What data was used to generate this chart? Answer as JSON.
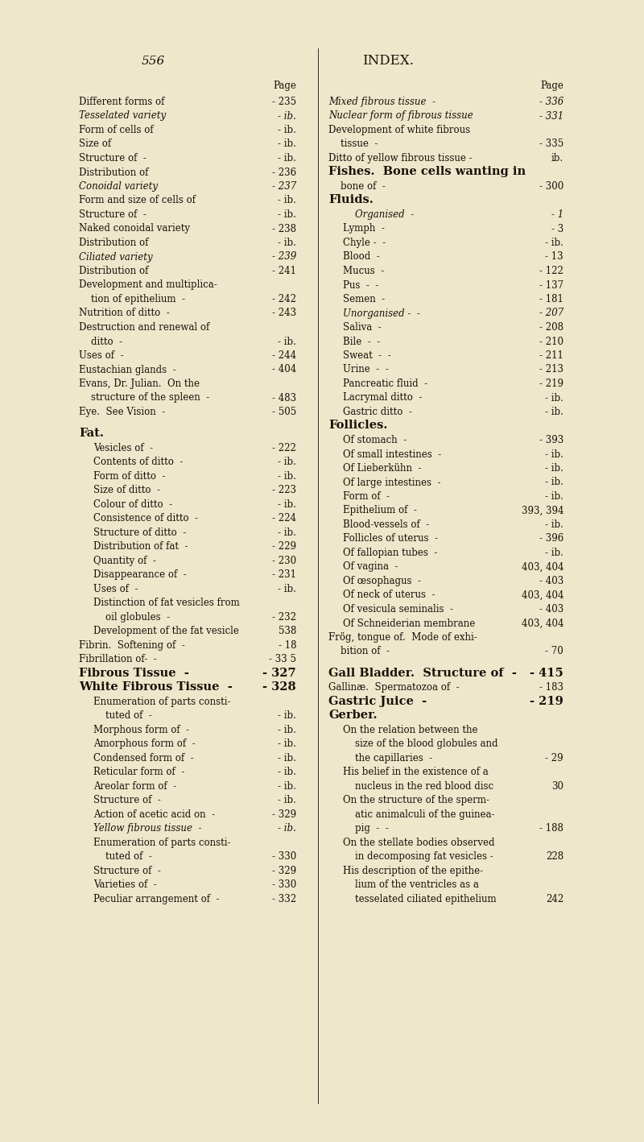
{
  "bg_color": "#ede8cc",
  "text_color": "#1a1008",
  "page_number": "556",
  "header": "INDEX.",
  "left_column": [
    {
      "text": "",
      "page": "Page",
      "style": "header"
    },
    {
      "text": "Different forms of",
      "dashes": "   -",
      "page": "- 235",
      "style": "normal"
    },
    {
      "text": "Tesselated variety",
      "dashes": "   -",
      "page": "- ib.",
      "style": "italic"
    },
    {
      "text": "Form of cells of",
      "dashes": "   -",
      "page": "- ib.",
      "style": "normal"
    },
    {
      "text": "Size of",
      "dashes": "   -   -",
      "page": "- ib.",
      "style": "normal"
    },
    {
      "text": "Structure of  -",
      "dashes": "   -",
      "page": "- ib.",
      "style": "normal"
    },
    {
      "text": "Distribution of",
      "dashes": "   -",
      "page": "- 236",
      "style": "normal"
    },
    {
      "text": "Conoidal variety",
      "dashes": "   -",
      "page": "- 237",
      "style": "italic"
    },
    {
      "text": "Form and size of cells of",
      "dashes": "   -",
      "page": "- ib.",
      "style": "normal"
    },
    {
      "text": "Structure of  -",
      "dashes": "   -",
      "page": "- ib.",
      "style": "normal"
    },
    {
      "text": "Naked conoidal variety",
      "dashes": "   -",
      "page": "- 238",
      "style": "normal"
    },
    {
      "text": "Distribution of",
      "dashes": "   -",
      "page": "- ib.",
      "style": "normal"
    },
    {
      "text": "Ciliated variety",
      "dashes": "   -",
      "page": "- 239",
      "style": "italic"
    },
    {
      "text": "Distribution of",
      "dashes": "   -",
      "page": "- 241",
      "style": "normal"
    },
    {
      "text": "Development and multiplica-",
      "dashes": "",
      "page": "",
      "style": "normal"
    },
    {
      "text": "    tion of epithelium  -",
      "dashes": "",
      "page": "- 242",
      "style": "normal"
    },
    {
      "text": "Nutrition of ditto  -",
      "dashes": "",
      "page": "- 243",
      "style": "normal"
    },
    {
      "text": "Destruction and renewal of",
      "dashes": "",
      "page": "",
      "style": "normal"
    },
    {
      "text": "    ditto  -",
      "dashes": "   -",
      "page": "- ib.",
      "style": "normal"
    },
    {
      "text": "Uses of  -",
      "dashes": "   -",
      "page": "- 244",
      "style": "normal"
    },
    {
      "text": "Eustachian glands  -",
      "dashes": "",
      "page": "- 404",
      "style": "normal"
    },
    {
      "text": "Evans, Dr. Julian.  On the",
      "dashes": "",
      "page": "",
      "style": "normal"
    },
    {
      "text": "    structure of the spleen  -",
      "dashes": "",
      "page": "- 483",
      "style": "normal"
    },
    {
      "text": "Eye.  See Vision  -",
      "dashes": "",
      "page": "- 505",
      "style": "normal"
    },
    {
      "text": "",
      "dashes": "",
      "page": "",
      "style": "spacer"
    },
    {
      "text": "Fat.",
      "dashes": "",
      "page": "",
      "style": "section"
    },
    {
      "text": "Vesicles of  -",
      "dashes": "   -",
      "page": "- 222",
      "style": "normal",
      "indent": 1
    },
    {
      "text": "Contents of ditto  -",
      "dashes": "",
      "page": "- ib.",
      "style": "normal",
      "indent": 1
    },
    {
      "text": "Form of ditto  -",
      "dashes": "   -",
      "page": "- ib.",
      "style": "normal",
      "indent": 1
    },
    {
      "text": "Size of ditto  -",
      "dashes": "   -",
      "page": "- 223",
      "style": "normal",
      "indent": 1
    },
    {
      "text": "Colour of ditto  -",
      "dashes": "   -",
      "page": "- ib.",
      "style": "normal",
      "indent": 1
    },
    {
      "text": "Consistence of ditto  -",
      "dashes": "",
      "page": "- 224",
      "style": "normal",
      "indent": 1
    },
    {
      "text": "Structure of ditto  -",
      "dashes": "   -",
      "page": "- ib.",
      "style": "normal",
      "indent": 1
    },
    {
      "text": "Distribution of fat  -",
      "dashes": "   -",
      "page": "- 229",
      "style": "normal",
      "indent": 1
    },
    {
      "text": "Quantity of  -",
      "dashes": "   -",
      "page": "- 230",
      "style": "normal",
      "indent": 1
    },
    {
      "text": "Disappearance of  -",
      "dashes": "   -",
      "page": "- 231",
      "style": "normal",
      "indent": 1
    },
    {
      "text": "Uses of  -",
      "dashes": "   -",
      "page": "- ib.",
      "style": "normal",
      "indent": 1
    },
    {
      "text": "Distinction of fat vesicles from",
      "dashes": "",
      "page": "",
      "style": "normal",
      "indent": 1
    },
    {
      "text": "    oil globules  -",
      "dashes": "   -",
      "page": "- 232",
      "style": "normal",
      "indent": 1
    },
    {
      "text": "Development of the fat vesicle",
      "dashes": "",
      "page": "538",
      "style": "normal",
      "indent": 1
    },
    {
      "text": "Fibrin.  Softening of  -",
      "dashes": "",
      "page": "- 18",
      "style": "normal"
    },
    {
      "text": "Fibrillation of-  -",
      "dashes": "",
      "page": "- 33 5",
      "style": "normal"
    },
    {
      "text": "Fibrous Tissue  -",
      "dashes": "",
      "page": "- 327",
      "style": "section"
    },
    {
      "text": "White Fibrous Tissue  -",
      "dashes": "",
      "page": "- 328",
      "style": "section"
    },
    {
      "text": "Enumeration of parts consti-",
      "dashes": "",
      "page": "",
      "style": "normal",
      "indent": 1
    },
    {
      "text": "    tuted of  -",
      "dashes": "   -",
      "page": "- ib.",
      "style": "normal",
      "indent": 1
    },
    {
      "text": "Morphous form of  -",
      "dashes": "   -",
      "page": "- ib.",
      "style": "normal",
      "indent": 1
    },
    {
      "text": "Amorphous form of  -",
      "dashes": "   -",
      "page": "- ib.",
      "style": "normal",
      "indent": 1
    },
    {
      "text": "Condensed form of  -",
      "dashes": "   -",
      "page": "- ib.",
      "style": "normal",
      "indent": 1
    },
    {
      "text": "Reticular form of  -",
      "dashes": "   -",
      "page": "- ib.",
      "style": "normal",
      "indent": 1
    },
    {
      "text": "Areolar form of  -",
      "dashes": "   -",
      "page": "- ib.",
      "style": "normal",
      "indent": 1
    },
    {
      "text": "Structure of  -",
      "dashes": "   -",
      "page": "- ib.",
      "style": "normal",
      "indent": 1
    },
    {
      "text": "Action of acetic acid on  -",
      "dashes": "",
      "page": "- 329",
      "style": "normal",
      "indent": 1
    },
    {
      "text": "Yellow fibrous tissue  -",
      "dashes": "   -",
      "page": "- ib.",
      "style": "italic",
      "indent": 1
    },
    {
      "text": "Enumeration of parts consti-",
      "dashes": "",
      "page": "",
      "style": "normal",
      "indent": 1
    },
    {
      "text": "    tuted of  -",
      "dashes": "   -",
      "page": "- 330",
      "style": "normal",
      "indent": 1
    },
    {
      "text": "Structure of  -",
      "dashes": "   -",
      "page": "- 329",
      "style": "normal",
      "indent": 1
    },
    {
      "text": "Varieties of  -",
      "dashes": "   -",
      "page": "- 330",
      "style": "normal",
      "indent": 1
    },
    {
      "text": "Peculiar arrangement of  -",
      "dashes": "",
      "page": "- 332",
      "style": "normal",
      "indent": 1
    }
  ],
  "right_column": [
    {
      "text": "",
      "page": "Page",
      "style": "header"
    },
    {
      "text": "Mixed fibrous tissue  -",
      "dashes": "",
      "page": "- 336",
      "style": "italic"
    },
    {
      "text": "Nuclear form of fibrous tissue",
      "dashes": "  -",
      "page": "- 331",
      "style": "italic"
    },
    {
      "text": "Development of white fibrous",
      "dashes": "",
      "page": "",
      "style": "normal"
    },
    {
      "text": "    tissue  -",
      "dashes": "   -",
      "page": "- 335",
      "style": "normal"
    },
    {
      "text": "Ditto of yellow fibrous tissue -",
      "dashes": "",
      "page": "ib.",
      "style": "normal"
    },
    {
      "text": "Fishes.  Bone cells wanting in",
      "dashes": "",
      "page": "",
      "style": "section"
    },
    {
      "text": "    bone of  -",
      "dashes": "   -",
      "page": "- 300",
      "style": "normal"
    },
    {
      "text": "Fluids.",
      "dashes": "",
      "page": "",
      "style": "section"
    },
    {
      "text": "    Organised  -",
      "dashes": "   -",
      "page": "- 1",
      "style": "italic",
      "indent": 1
    },
    {
      "text": "Lymph  -",
      "dashes": "   -",
      "page": "- 3",
      "style": "normal",
      "indent": 1
    },
    {
      "text": "Chyle -  -",
      "dashes": "   -",
      "page": "- ib.",
      "style": "normal",
      "indent": 1
    },
    {
      "text": "Blood  -",
      "dashes": "   -",
      "page": "- 13",
      "style": "normal",
      "indent": 1
    },
    {
      "text": "Mucus  -",
      "dashes": "   -",
      "page": "- 122",
      "style": "normal",
      "indent": 1
    },
    {
      "text": "Pus  -  -",
      "dashes": "   -",
      "page": "- 137",
      "style": "normal",
      "indent": 1
    },
    {
      "text": "Semen  -",
      "dashes": "   -",
      "page": "- 181",
      "style": "normal",
      "indent": 1
    },
    {
      "text": "Unorganised -  -",
      "dashes": "   -",
      "page": "- 207",
      "style": "italic",
      "indent": 1
    },
    {
      "text": "Saliva  -",
      "dashes": "   -",
      "page": "- 208",
      "style": "normal",
      "indent": 1
    },
    {
      "text": "Bile  -  -",
      "dashes": "   -",
      "page": "- 210",
      "style": "normal",
      "indent": 1
    },
    {
      "text": "Sweat  -  -",
      "dashes": "   -",
      "page": "- 211",
      "style": "normal",
      "indent": 1
    },
    {
      "text": "Urine  -  -",
      "dashes": "   -",
      "page": "- 213",
      "style": "normal",
      "indent": 1
    },
    {
      "text": "Pancreatic fluid  -",
      "dashes": "   -",
      "page": "- 219",
      "style": "normal",
      "indent": 1
    },
    {
      "text": "Lacrymal ditto  -",
      "dashes": "   -",
      "page": "- ib.",
      "style": "normal",
      "indent": 1
    },
    {
      "text": "Gastric ditto  -",
      "dashes": "   -",
      "page": "- ib.",
      "style": "normal",
      "indent": 1
    },
    {
      "text": "Follicles.",
      "dashes": "",
      "page": "",
      "style": "section"
    },
    {
      "text": "Of stomach  -",
      "dashes": "   -",
      "page": "- 393",
      "style": "normal",
      "indent": 1
    },
    {
      "text": "Of small intestines  -",
      "dashes": "   -",
      "page": "- ib.",
      "style": "normal",
      "indent": 1
    },
    {
      "text": "Of Lieberkühn  -",
      "dashes": "   -",
      "page": "- ib.",
      "style": "normal",
      "indent": 1
    },
    {
      "text": "Of large intestines  -",
      "dashes": "   -",
      "page": "- ib.",
      "style": "normal",
      "indent": 1
    },
    {
      "text": "Form of  -",
      "dashes": "   -",
      "page": "- ib.",
      "style": "normal",
      "indent": 1
    },
    {
      "text": "Epithelium of  -",
      "dashes": "   -",
      "page": "393, 394",
      "style": "normal",
      "indent": 1
    },
    {
      "text": "Blood-vessels of  -",
      "dashes": "   -",
      "page": "- ib.",
      "style": "normal",
      "indent": 1
    },
    {
      "text": "Follicles of uterus  -",
      "dashes": "   -",
      "page": "- 396",
      "style": "normal",
      "indent": 1
    },
    {
      "text": "Of fallopian tubes  -",
      "dashes": "   -",
      "page": "- ib.",
      "style": "normal",
      "indent": 1
    },
    {
      "text": "Of vagina  -",
      "dashes": "   -",
      "page": "403, 404",
      "style": "normal",
      "indent": 1
    },
    {
      "text": "Of œsophagus  -",
      "dashes": "   -",
      "page": "- 403",
      "style": "normal",
      "indent": 1
    },
    {
      "text": "Of neck of uterus  -",
      "dashes": "   -",
      "page": "403, 404",
      "style": "normal",
      "indent": 1
    },
    {
      "text": "Of vesicula seminalis  -",
      "dashes": "   -",
      "page": "- 403",
      "style": "normal",
      "indent": 1
    },
    {
      "text": "Of Schneiderian membrane",
      "dashes": "",
      "page": "403, 404",
      "style": "normal",
      "indent": 1
    },
    {
      "text": "Frög, tongue of.  Mode of exhi-",
      "dashes": "",
      "page": "",
      "style": "normal"
    },
    {
      "text": "    bition of  -",
      "dashes": "   -",
      "page": "- 70",
      "style": "normal"
    },
    {
      "text": "",
      "dashes": "",
      "page": "",
      "style": "spacer"
    },
    {
      "text": "Gall Bladder.  Structure of  -",
      "dashes": "",
      "page": "- 415",
      "style": "section"
    },
    {
      "text": "Gallinæ.  Spermatozoa of  -",
      "dashes": "",
      "page": "- 183",
      "style": "normal"
    },
    {
      "text": "Gastric Juice  -",
      "dashes": "   -",
      "page": "- 219",
      "style": "section"
    },
    {
      "text": "Gerber.",
      "dashes": "",
      "page": "",
      "style": "section"
    },
    {
      "text": "On the relation between the",
      "dashes": "",
      "page": "",
      "style": "normal",
      "indent": 1
    },
    {
      "text": "    size of the blood globules and",
      "dashes": "",
      "page": "",
      "style": "normal",
      "indent": 1
    },
    {
      "text": "    the capillaries  -",
      "dashes": "   -",
      "page": "- 29",
      "style": "normal",
      "indent": 1
    },
    {
      "text": "His belief in the existence of a",
      "dashes": "",
      "page": "",
      "style": "normal",
      "indent": 1
    },
    {
      "text": "    nucleus in the red blood disc",
      "dashes": "",
      "page": "30",
      "style": "normal",
      "indent": 1
    },
    {
      "text": "On the structure of the sperm-",
      "dashes": "",
      "page": "",
      "style": "normal",
      "indent": 1
    },
    {
      "text": "    atic animalculi of the guinea-",
      "dashes": "",
      "page": "",
      "style": "normal",
      "indent": 1
    },
    {
      "text": "    pig  -  -",
      "dashes": "   -",
      "page": "- 188",
      "style": "normal",
      "indent": 1
    },
    {
      "text": "On the stellate bodies observed",
      "dashes": "",
      "page": "",
      "style": "normal",
      "indent": 1
    },
    {
      "text": "    in decomposing fat vesicles -",
      "dashes": "",
      "page": "228",
      "style": "normal",
      "indent": 1
    },
    {
      "text": "His description of the epithe-",
      "dashes": "",
      "page": "",
      "style": "normal",
      "indent": 1
    },
    {
      "text": "    lium of the ventricles as a",
      "dashes": "",
      "page": "",
      "style": "normal",
      "indent": 1
    },
    {
      "text": "    tesselated ciliated epithelium",
      "dashes": "",
      "page": "242",
      "style": "normal",
      "indent": 1
    }
  ]
}
